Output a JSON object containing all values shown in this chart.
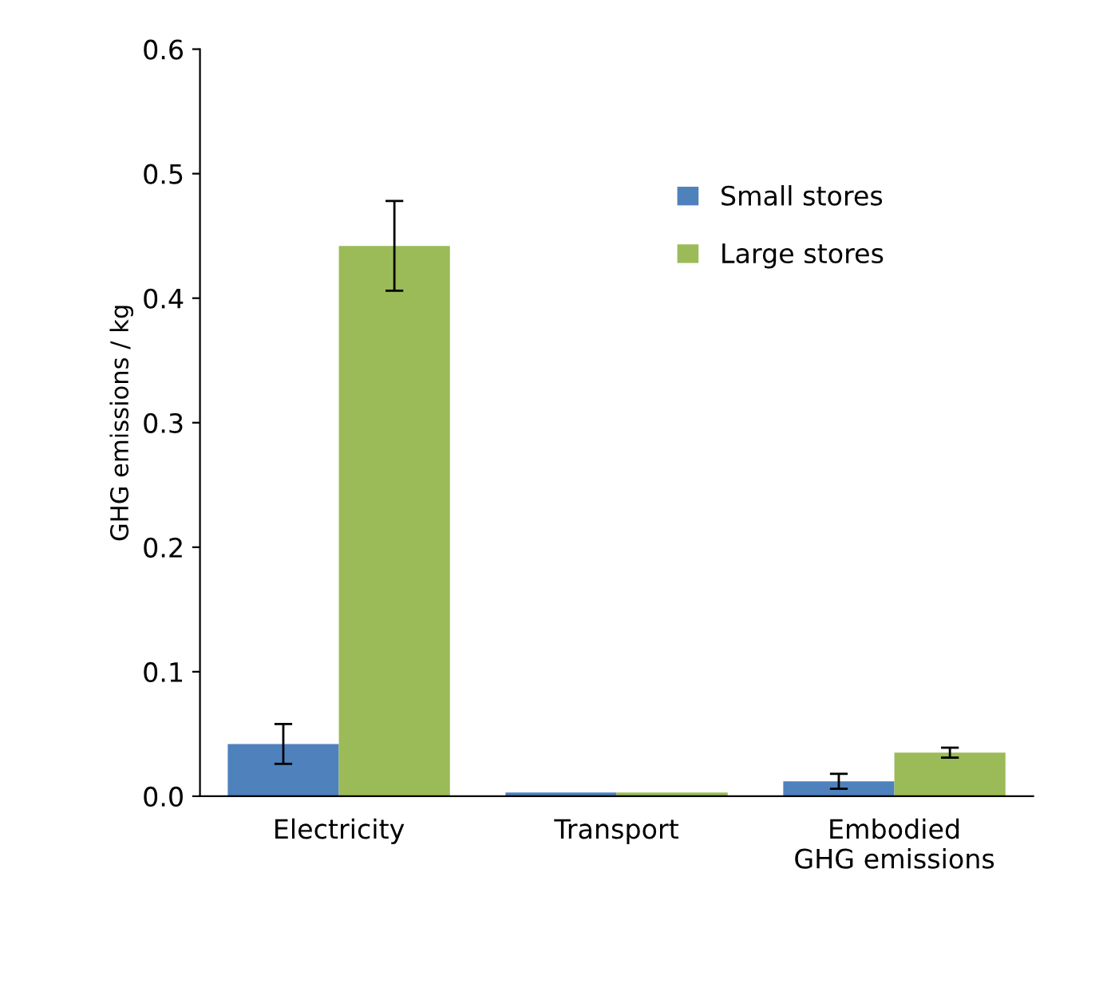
{
  "chart_data": {
    "type": "bar",
    "ylabel": "GHG emissions / kg",
    "categories": [
      "Electricity",
      "Transport",
      "Embodied\nGHG emissions"
    ],
    "series": [
      {
        "name": "Small stores",
        "color": "#4f81bd",
        "values": [
          0.042,
          0.003,
          0.012
        ],
        "errors": [
          0.016,
          null,
          0.006
        ]
      },
      {
        "name": "Large stores",
        "color": "#9bbb59",
        "values": [
          0.442,
          0.003,
          0.035
        ],
        "errors": [
          0.036,
          null,
          0.004
        ]
      }
    ],
    "ylim": [
      0,
      0.6
    ],
    "yticks": [
      {
        "value": 0,
        "label": "0.0"
      },
      {
        "value": 0.1,
        "label": "0.1"
      },
      {
        "value": 0.2,
        "label": "0.2"
      },
      {
        "value": 0.3,
        "label": "0.3"
      },
      {
        "value": 0.4,
        "label": "0.4"
      },
      {
        "value": 0.5,
        "label": "0.5"
      },
      {
        "value": 0.6,
        "label": "0.6"
      }
    ],
    "grid": false,
    "legend": "top right"
  }
}
